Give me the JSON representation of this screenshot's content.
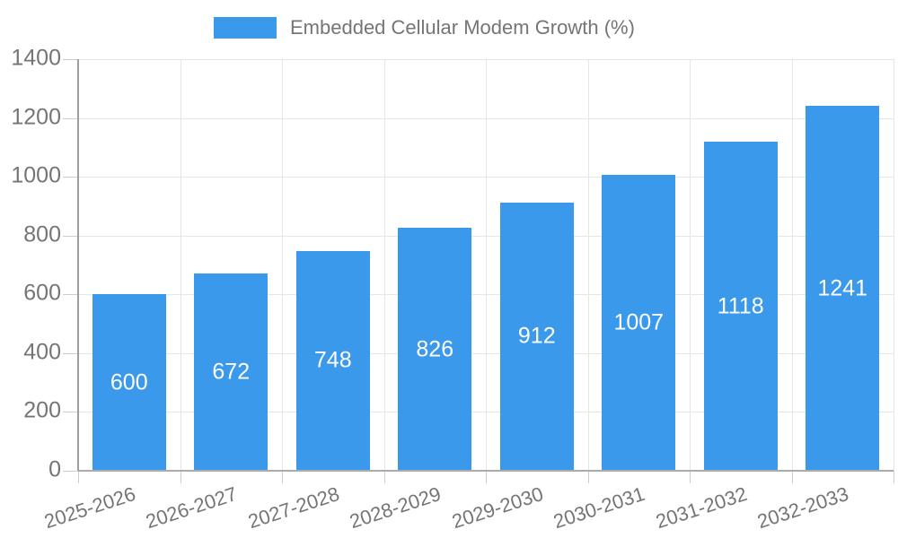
{
  "chart_data": {
    "type": "bar",
    "title": "Embedded Cellular Modem Growth (%)",
    "categories": [
      "2025-2026",
      "2026-2027",
      "2027-2028",
      "2028-2029",
      "2029-2030",
      "2030-2031",
      "2031-2032",
      "2032-2033"
    ],
    "values": [
      600,
      672,
      748,
      826,
      912,
      1007,
      1118,
      1241
    ],
    "value_labels": [
      "600",
      "672",
      "748",
      "826",
      "912",
      "1007",
      "1118",
      "1241"
    ],
    "xlabel": "",
    "ylabel": "",
    "ylim": [
      0,
      1400
    ],
    "ytick_step": 200,
    "ytick_labels": [
      "0",
      "200",
      "400",
      "600",
      "800",
      "1000",
      "1200",
      "1400"
    ],
    "grid": true,
    "legend_position": "top",
    "colors": {
      "bar": "#3b99ec",
      "value_label": "#ffffff",
      "axis_text": "#757575",
      "gridline": "#e6e6e6",
      "tick": "#cccccc",
      "x_axis_line": "#ababab",
      "y_axis_line": "#9e9e9e",
      "background": "#ffffff"
    }
  }
}
